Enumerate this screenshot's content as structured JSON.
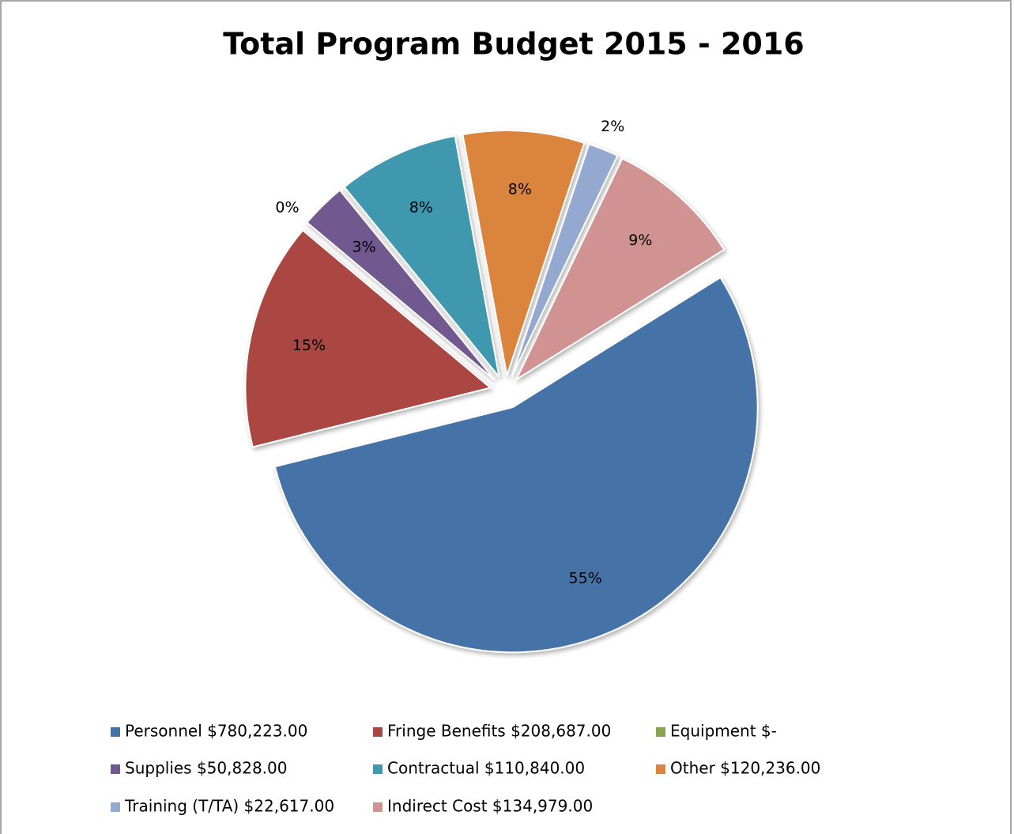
{
  "chart_data": {
    "type": "pie",
    "title": "Total Program Budget 2015 - 2016",
    "categories": [
      "Personnel $780,223.00",
      "Fringe Benefits $208,687.00",
      "Equipment $-",
      "Supplies $50,828.00",
      "Contractual $110,840.00",
      "Other $120,236.00",
      "Training (T/TA) $22,617.00",
      "Indirect Cost $134,979.00"
    ],
    "values": [
      55,
      15,
      0,
      3,
      8,
      8,
      2,
      9
    ],
    "value_labels": [
      "55%",
      "15%",
      "0%",
      "3%",
      "8%",
      "8%",
      "2%",
      "9%"
    ],
    "colors": [
      "#4572a7",
      "#aa4643",
      "#89a54e",
      "#71588f",
      "#4198af",
      "#db843d",
      "#93a9cf",
      "#d19392"
    ],
    "legend": "bottom"
  }
}
